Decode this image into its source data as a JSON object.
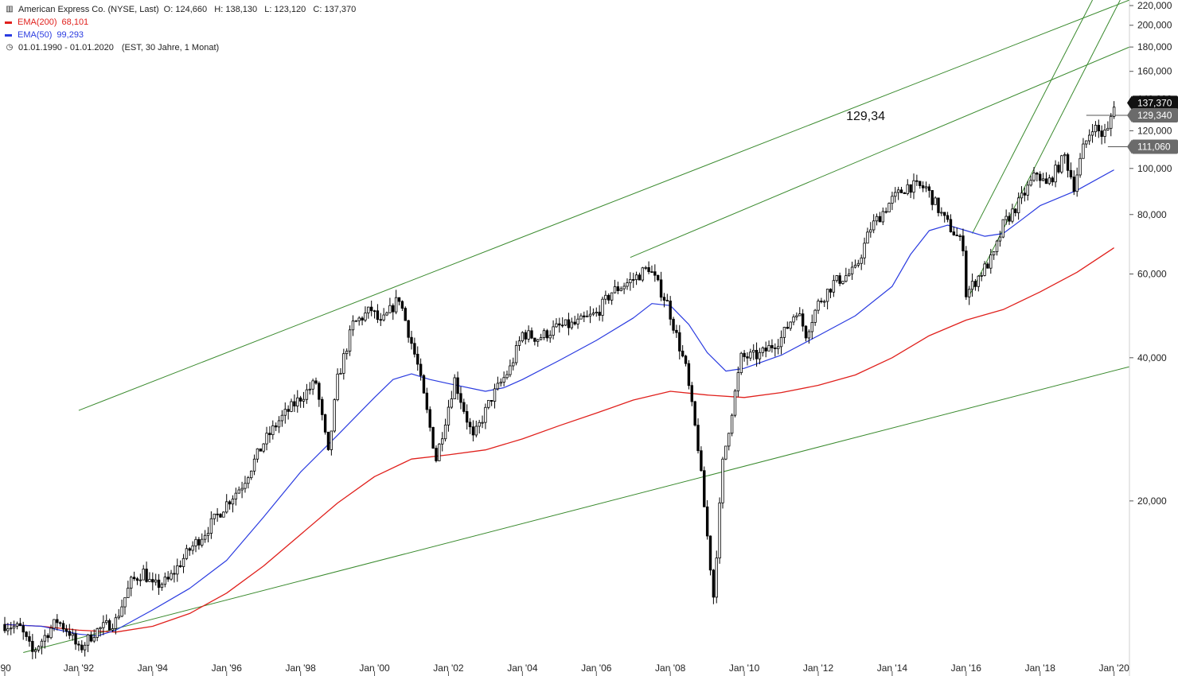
{
  "legend": {
    "title": "American Express Co. (NYSE, Last)",
    "ohlc": "O: 124,660   H: 138,130   L: 123,120   C: 137,370",
    "ema200_label": "EMA(200)",
    "ema200_value": "68,101",
    "ema50_label": "EMA(50)",
    "ema50_value": "99,293",
    "range": "01.01.1990 - 01.01.2020",
    "range_note": "(EST, 30 Jahre, 1 Monat)"
  },
  "colors": {
    "price": "#000000",
    "ema200": "#e0201c",
    "ema50": "#2a3be0",
    "trendline": "#3a8a2e",
    "level_line": "#555555",
    "badge_last": "#111111",
    "badge_level": "#6b6b6b"
  },
  "annotation": "129,34",
  "chart_data": {
    "type": "line",
    "title": "American Express Co. (NYSE, Last)",
    "y_scale": "log",
    "ylim": [
      9.4,
      226
    ],
    "xlim": [
      "1990-01-01",
      "2020-06-01"
    ],
    "y_ticks": [
      {
        "value": 20,
        "label": "20,000"
      },
      {
        "value": 40,
        "label": "40,000"
      },
      {
        "value": 60,
        "label": "60,000"
      },
      {
        "value": 80,
        "label": "80,000"
      },
      {
        "value": 100,
        "label": "100,000"
      },
      {
        "value": 120,
        "label": "120,000"
      },
      {
        "value": 140,
        "label": "140,000"
      },
      {
        "value": 160,
        "label": "160,000"
      },
      {
        "value": 180,
        "label": "180,000"
      },
      {
        "value": 200,
        "label": "200,000"
      },
      {
        "value": 220,
        "label": "220,000"
      }
    ],
    "x_ticks": [
      {
        "date": "1990-01",
        "label": "'90"
      },
      {
        "date": "1992-01",
        "label": "Jan '92"
      },
      {
        "date": "1994-01",
        "label": "Jan '94"
      },
      {
        "date": "1996-01",
        "label": "Jan '96"
      },
      {
        "date": "1998-01",
        "label": "Jan '98"
      },
      {
        "date": "2000-01",
        "label": "Jan '00"
      },
      {
        "date": "2002-01",
        "label": "Jan '02"
      },
      {
        "date": "2004-01",
        "label": "Jan '04"
      },
      {
        "date": "2006-01",
        "label": "Jan '06"
      },
      {
        "date": "2008-01",
        "label": "Jan '08"
      },
      {
        "date": "2010-01",
        "label": "Jan '10"
      },
      {
        "date": "2012-01",
        "label": "Jan '12"
      },
      {
        "date": "2014-01",
        "label": "Jan '14"
      },
      {
        "date": "2016-01",
        "label": "Jan '16"
      },
      {
        "date": "2018-01",
        "label": "Jan '18"
      },
      {
        "date": "2020-01",
        "label": "Jan '20"
      }
    ],
    "series": [
      {
        "name": "American Express Co. (NYSE, Last)",
        "style": "monthly-candles",
        "points": [
          [
            "1990-01",
            11.0
          ],
          [
            "1990-06",
            10.8
          ],
          [
            "1990-10",
            9.6
          ],
          [
            "1991-03",
            10.6
          ],
          [
            "1991-06",
            11.2
          ],
          [
            "1991-10",
            10.6
          ],
          [
            "1992-01",
            9.7
          ],
          [
            "1992-06",
            10.6
          ],
          [
            "1993-01",
            11.2
          ],
          [
            "1993-06",
            13.5
          ],
          [
            "1993-10",
            14.2
          ],
          [
            "1994-01",
            13.2
          ],
          [
            "1994-06",
            13.6
          ],
          [
            "1995-01",
            15.8
          ],
          [
            "1995-06",
            17.2
          ],
          [
            "1996-01",
            19.8
          ],
          [
            "1996-06",
            21.6
          ],
          [
            "1997-01",
            26.5
          ],
          [
            "1997-06",
            29.5
          ],
          [
            "1998-01",
            33.0
          ],
          [
            "1998-06",
            35.5
          ],
          [
            "1998-10",
            25.0
          ],
          [
            "1999-01",
            36.0
          ],
          [
            "1999-06",
            47.0
          ],
          [
            "1999-12",
            50.5
          ],
          [
            "2000-03",
            47.0
          ],
          [
            "2000-09",
            53.5
          ],
          [
            "2001-03",
            38.5
          ],
          [
            "2001-09",
            24.5
          ],
          [
            "2002-03",
            36.0
          ],
          [
            "2002-09",
            27.0
          ],
          [
            "2003-03",
            33.0
          ],
          [
            "2003-09",
            38.0
          ],
          [
            "2004-01",
            45.0
          ],
          [
            "2004-06",
            44.0
          ],
          [
            "2005-01",
            46.5
          ],
          [
            "2005-06",
            47.0
          ],
          [
            "2006-01",
            49.5
          ],
          [
            "2006-06",
            55.0
          ],
          [
            "2007-01",
            58.5
          ],
          [
            "2007-06",
            62.0
          ],
          [
            "2007-12",
            52.0
          ],
          [
            "2008-06",
            38.0
          ],
          [
            "2008-10",
            26.0
          ],
          [
            "2009-03",
            12.6
          ],
          [
            "2009-06",
            24.0
          ],
          [
            "2009-12",
            40.0
          ],
          [
            "2010-06",
            40.5
          ],
          [
            "2011-01",
            44.0
          ],
          [
            "2011-06",
            50.5
          ],
          [
            "2011-09",
            45.0
          ],
          [
            "2012-01",
            52.0
          ],
          [
            "2012-06",
            57.5
          ],
          [
            "2013-01",
            61.0
          ],
          [
            "2013-06",
            75.0
          ],
          [
            "2014-01",
            86.0
          ],
          [
            "2014-06",
            92.0
          ],
          [
            "2014-12",
            91.0
          ],
          [
            "2015-06",
            78.0
          ],
          [
            "2015-12",
            69.0
          ],
          [
            "2016-01",
            54.5
          ],
          [
            "2016-06",
            60.5
          ],
          [
            "2016-10",
            65.5
          ],
          [
            "2017-01",
            76.0
          ],
          [
            "2017-06",
            84.5
          ],
          [
            "2017-12",
            98.0
          ],
          [
            "2018-03",
            92.0
          ],
          [
            "2018-09",
            106.0
          ],
          [
            "2018-12",
            92.0
          ],
          [
            "2019-03",
            110.0
          ],
          [
            "2019-06",
            123.0
          ],
          [
            "2019-09",
            118.0
          ],
          [
            "2019-11",
            120.0
          ],
          [
            "2020-01",
            137.37
          ]
        ]
      },
      {
        "name": "EMA(200)",
        "points": [
          [
            "1990-01",
            11.0
          ],
          [
            "1991-01",
            10.9
          ],
          [
            "1992-01",
            10.7
          ],
          [
            "1993-01",
            10.6
          ],
          [
            "1994-01",
            10.9
          ],
          [
            "1995-01",
            11.6
          ],
          [
            "1996-01",
            12.8
          ],
          [
            "1997-01",
            14.6
          ],
          [
            "1998-01",
            17.0
          ],
          [
            "1999-01",
            19.8
          ],
          [
            "2000-01",
            22.5
          ],
          [
            "2001-01",
            24.5
          ],
          [
            "2002-01",
            25.0
          ],
          [
            "2003-01",
            25.6
          ],
          [
            "2004-01",
            27.0
          ],
          [
            "2005-01",
            28.8
          ],
          [
            "2006-01",
            30.6
          ],
          [
            "2007-01",
            32.6
          ],
          [
            "2008-01",
            34.0
          ],
          [
            "2009-01",
            33.4
          ],
          [
            "2010-01",
            33.0
          ],
          [
            "2011-01",
            33.8
          ],
          [
            "2012-01",
            35.0
          ],
          [
            "2013-01",
            36.8
          ],
          [
            "2014-01",
            40.0
          ],
          [
            "2015-01",
            44.5
          ],
          [
            "2016-01",
            48.0
          ],
          [
            "2017-01",
            50.5
          ],
          [
            "2018-01",
            55.0
          ],
          [
            "2019-01",
            60.5
          ],
          [
            "2020-01",
            68.101
          ]
        ]
      },
      {
        "name": "EMA(50)",
        "points": [
          [
            "1990-01",
            11.0
          ],
          [
            "1991-01",
            10.9
          ],
          [
            "1992-01",
            10.5
          ],
          [
            "1992-07",
            10.4
          ],
          [
            "1993-01",
            10.7
          ],
          [
            "1994-01",
            11.8
          ],
          [
            "1995-01",
            13.1
          ],
          [
            "1996-01",
            15.0
          ],
          [
            "1997-01",
            18.5
          ],
          [
            "1998-01",
            23.0
          ],
          [
            "1999-01",
            27.5
          ],
          [
            "2000-01",
            33.0
          ],
          [
            "2000-07",
            36.0
          ],
          [
            "2001-01",
            37.0
          ],
          [
            "2001-07",
            36.0
          ],
          [
            "2002-01",
            35.3
          ],
          [
            "2003-01",
            34.0
          ],
          [
            "2003-07",
            34.6
          ],
          [
            "2004-01",
            36.0
          ],
          [
            "2005-01",
            39.5
          ],
          [
            "2006-01",
            43.5
          ],
          [
            "2007-01",
            48.5
          ],
          [
            "2007-07",
            52.0
          ],
          [
            "2008-01",
            51.5
          ],
          [
            "2008-07",
            47.0
          ],
          [
            "2009-01",
            41.0
          ],
          [
            "2009-07",
            37.5
          ],
          [
            "2010-01",
            38.0
          ],
          [
            "2011-01",
            40.5
          ],
          [
            "2012-01",
            44.5
          ],
          [
            "2013-01",
            49.0
          ],
          [
            "2014-01",
            56.5
          ],
          [
            "2014-07",
            66.0
          ],
          [
            "2015-01",
            74.0
          ],
          [
            "2015-07",
            76.0
          ],
          [
            "2016-01",
            74.0
          ],
          [
            "2016-07",
            72.0
          ],
          [
            "2017-01",
            73.0
          ],
          [
            "2017-07",
            78.0
          ],
          [
            "2018-01",
            83.5
          ],
          [
            "2019-01",
            90.0
          ],
          [
            "2020-01",
            99.293
          ]
        ]
      }
    ],
    "trendlines": [
      {
        "from": [
          "1990-07",
          9.6
        ],
        "to": [
          "2020-06",
          38.3
        ]
      },
      {
        "from": [
          "1992-01",
          31.0
        ],
        "to": [
          "2020-06",
          226.0
        ]
      },
      {
        "from": [
          "2006-12",
          65.0
        ],
        "to": [
          "2020-06",
          180.0
        ]
      },
      {
        "from": [
          "2016-03",
          73.0
        ],
        "to": [
          "2019-06",
          226.0
        ]
      },
      {
        "from": [
          "2016-02",
          54.0
        ],
        "to": [
          "2020-03",
          226.0
        ]
      }
    ],
    "levels": [
      {
        "value": 129.34,
        "label": "129,340",
        "from": "2019-04"
      },
      {
        "value": 111.06,
        "label": "111,060",
        "from": "2019-11"
      }
    ],
    "last_price": {
      "value": 137.37,
      "label": "137,370"
    }
  }
}
